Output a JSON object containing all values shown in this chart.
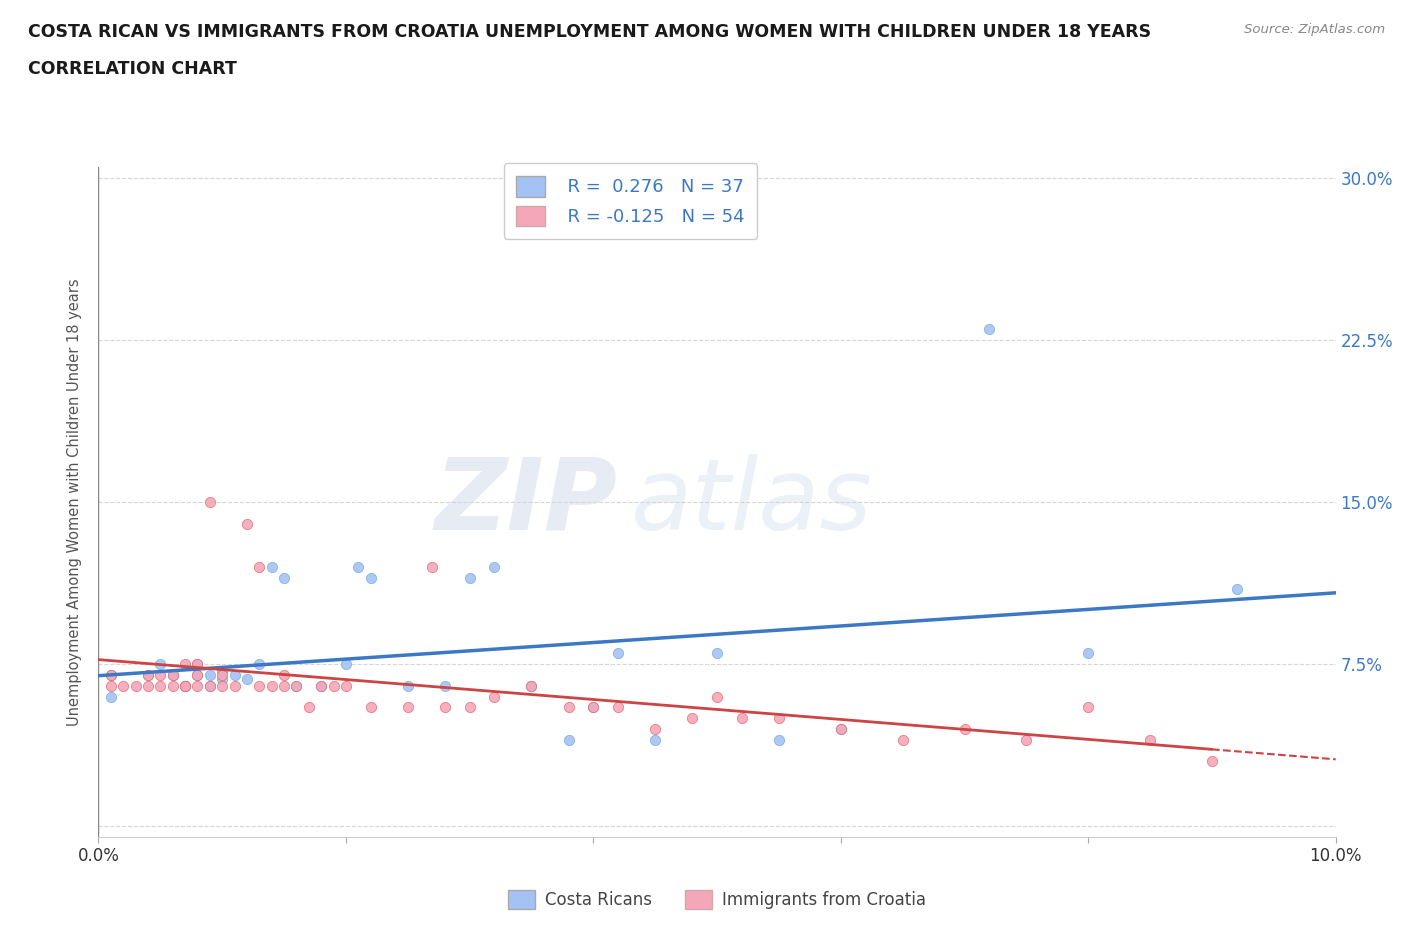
{
  "title_line1": "COSTA RICAN VS IMMIGRANTS FROM CROATIA UNEMPLOYMENT AMONG WOMEN WITH CHILDREN UNDER 18 YEARS",
  "title_line2": "CORRELATION CHART",
  "source": "Source: ZipAtlas.com",
  "ylabel": "Unemployment Among Women with Children Under 18 years",
  "xlim": [
    0.0,
    0.1
  ],
  "ylim": [
    -0.005,
    0.305
  ],
  "grid_color": "#cccccc",
  "background_color": "#ffffff",
  "watermark_zip": "ZIP",
  "watermark_atlas": "atlas",
  "blue_color": "#a4c2f4",
  "pink_color": "#f4a7b9",
  "blue_scatter_edge": "#6fa8dc",
  "pink_scatter_edge": "#e06666",
  "blue_line_color": "#3d78c4",
  "pink_line_color": "#cc4444",
  "label_blue": "Costa Ricans",
  "label_pink": "Immigrants from Croatia",
  "legend_R1": "R =  0.276",
  "legend_N1": "N = 37",
  "legend_R2": "R = -0.125",
  "legend_N2": "N = 54",
  "blue_scatter_x": [
    0.001,
    0.001,
    0.004,
    0.005,
    0.006,
    0.007,
    0.008,
    0.008,
    0.009,
    0.009,
    0.01,
    0.01,
    0.011,
    0.012,
    0.013,
    0.014,
    0.015,
    0.016,
    0.018,
    0.02,
    0.021,
    0.022,
    0.025,
    0.028,
    0.03,
    0.032,
    0.035,
    0.038,
    0.04,
    0.042,
    0.045,
    0.05,
    0.055,
    0.06,
    0.072,
    0.08,
    0.092
  ],
  "blue_scatter_y": [
    0.06,
    0.07,
    0.07,
    0.075,
    0.07,
    0.065,
    0.07,
    0.075,
    0.065,
    0.07,
    0.068,
    0.072,
    0.07,
    0.068,
    0.075,
    0.12,
    0.115,
    0.065,
    0.065,
    0.075,
    0.12,
    0.115,
    0.065,
    0.065,
    0.115,
    0.12,
    0.065,
    0.04,
    0.055,
    0.08,
    0.04,
    0.08,
    0.04,
    0.045,
    0.23,
    0.08,
    0.11
  ],
  "pink_scatter_x": [
    0.001,
    0.001,
    0.002,
    0.003,
    0.004,
    0.004,
    0.005,
    0.005,
    0.006,
    0.006,
    0.007,
    0.007,
    0.007,
    0.008,
    0.008,
    0.008,
    0.009,
    0.009,
    0.01,
    0.01,
    0.011,
    0.012,
    0.013,
    0.013,
    0.014,
    0.015,
    0.015,
    0.016,
    0.017,
    0.018,
    0.019,
    0.02,
    0.022,
    0.025,
    0.027,
    0.028,
    0.03,
    0.032,
    0.035,
    0.038,
    0.04,
    0.042,
    0.045,
    0.048,
    0.05,
    0.052,
    0.055,
    0.06,
    0.065,
    0.07,
    0.075,
    0.08,
    0.085,
    0.09
  ],
  "pink_scatter_y": [
    0.065,
    0.07,
    0.065,
    0.065,
    0.07,
    0.065,
    0.07,
    0.065,
    0.07,
    0.065,
    0.065,
    0.075,
    0.065,
    0.065,
    0.07,
    0.075,
    0.065,
    0.15,
    0.065,
    0.07,
    0.065,
    0.14,
    0.065,
    0.12,
    0.065,
    0.065,
    0.07,
    0.065,
    0.055,
    0.065,
    0.065,
    0.065,
    0.055,
    0.055,
    0.12,
    0.055,
    0.055,
    0.06,
    0.065,
    0.055,
    0.055,
    0.055,
    0.045,
    0.05,
    0.06,
    0.05,
    0.05,
    0.045,
    0.04,
    0.045,
    0.04,
    0.055,
    0.04,
    0.03
  ]
}
